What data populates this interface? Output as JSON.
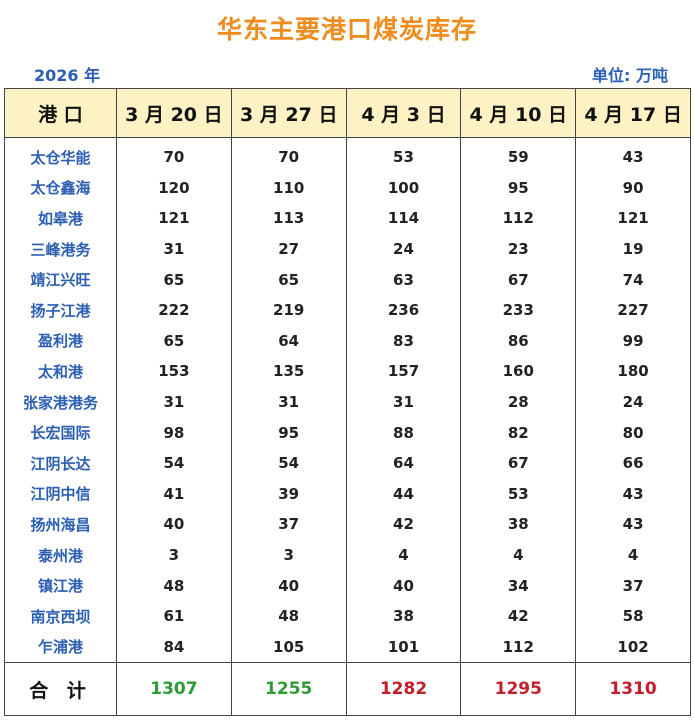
{
  "title": "华东主要港口煤炭库存",
  "year_label": "2026 年",
  "unit_label": "单位: 万吨",
  "colors": {
    "title": "#f08c1e",
    "port_name": "#2b5fb3",
    "header_bg": "#fdf2c4",
    "total_up": "#2e9a35",
    "total_down": "#c41e2a"
  },
  "chart_data": {
    "type": "table",
    "title": "华东主要港口煤炭库存",
    "columns": [
      "港 口",
      "3 月 20 日",
      "3 月 27 日",
      "4 月 3 日",
      "4 月 10 日",
      "4 月 17 日"
    ],
    "rows": [
      {
        "port": "太仓华能",
        "values": [
          70,
          70,
          53,
          59,
          43
        ]
      },
      {
        "port": "太仓鑫海",
        "values": [
          120,
          110,
          100,
          95,
          90
        ]
      },
      {
        "port": "如皋港",
        "values": [
          121,
          113,
          114,
          112,
          121
        ]
      },
      {
        "port": "三峰港务",
        "values": [
          31,
          27,
          24,
          23,
          19
        ]
      },
      {
        "port": "靖江兴旺",
        "values": [
          65,
          65,
          63,
          67,
          74
        ]
      },
      {
        "port": "扬子江港",
        "values": [
          222,
          219,
          236,
          233,
          227
        ]
      },
      {
        "port": "盈利港",
        "values": [
          65,
          64,
          83,
          86,
          99
        ]
      },
      {
        "port": "太和港",
        "values": [
          153,
          135,
          157,
          160,
          180
        ]
      },
      {
        "port": "张家港港务",
        "values": [
          31,
          31,
          31,
          28,
          24
        ]
      },
      {
        "port": "长宏国际",
        "values": [
          98,
          95,
          88,
          82,
          80
        ]
      },
      {
        "port": "江阴长达",
        "values": [
          54,
          54,
          64,
          67,
          66
        ]
      },
      {
        "port": "江阴中信",
        "values": [
          41,
          39,
          44,
          53,
          43
        ]
      },
      {
        "port": "扬州海昌",
        "values": [
          40,
          37,
          42,
          38,
          43
        ]
      },
      {
        "port": "泰州港",
        "values": [
          3,
          3,
          4,
          4,
          4
        ]
      },
      {
        "port": "镇江港",
        "values": [
          48,
          40,
          40,
          34,
          37
        ]
      },
      {
        "port": "南京西坝",
        "values": [
          61,
          48,
          38,
          42,
          58
        ]
      },
      {
        "port": "乍浦港",
        "values": [
          84,
          105,
          101,
          112,
          102
        ]
      }
    ],
    "total": {
      "label": "合 计",
      "values": [
        1307,
        1255,
        1282,
        1295,
        1310
      ],
      "colors": [
        "#2e9a35",
        "#2e9a35",
        "#c41e2a",
        "#c41e2a",
        "#c41e2a"
      ]
    }
  }
}
